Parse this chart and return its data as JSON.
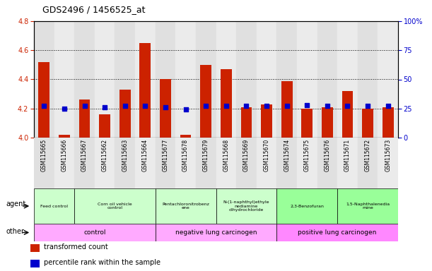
{
  "title": "GDS2496 / 1456525_at",
  "samples": [
    "GSM115665",
    "GSM115666",
    "GSM115667",
    "GSM115662",
    "GSM115663",
    "GSM115664",
    "GSM115677",
    "GSM115678",
    "GSM115679",
    "GSM115668",
    "GSM115669",
    "GSM115670",
    "GSM115674",
    "GSM115675",
    "GSM115676",
    "GSM115671",
    "GSM115672",
    "GSM115673"
  ],
  "bar_values": [
    4.52,
    4.02,
    4.26,
    4.16,
    4.33,
    4.65,
    4.4,
    4.02,
    4.5,
    4.47,
    4.21,
    4.23,
    4.39,
    4.2,
    4.21,
    4.32,
    4.2,
    4.21
  ],
  "percentile_values": [
    27,
    25,
    27,
    26,
    27,
    27,
    26,
    24,
    27,
    27,
    27,
    27,
    27,
    28,
    27,
    27,
    27,
    27
  ],
  "bar_color": "#cc2200",
  "dot_color": "#0000cc",
  "ylim_left": [
    4.0,
    4.8
  ],
  "ylim_right": [
    0,
    100
  ],
  "yticks_left": [
    4.0,
    4.2,
    4.4,
    4.6,
    4.8
  ],
  "yticks_right": [
    0,
    25,
    50,
    75,
    100
  ],
  "ytick_labels_right": [
    "0",
    "25",
    "50",
    "75",
    "100%"
  ],
  "grid_values": [
    4.2,
    4.4,
    4.6
  ],
  "col_colors": [
    "#e0e0e0",
    "#ebebeb"
  ],
  "agent_groups": [
    {
      "label": "Feed control",
      "start": 0,
      "end": 2,
      "color": "#ccffcc"
    },
    {
      "label": "Corn oil vehicle\ncontrol",
      "start": 2,
      "end": 6,
      "color": "#ccffcc"
    },
    {
      "label": "Pentachloronitrobenz\nene",
      "start": 6,
      "end": 9,
      "color": "#ccffcc"
    },
    {
      "label": "N-(1-naphthyl)ethyle\nnediamine\ndihydrochloride",
      "start": 9,
      "end": 12,
      "color": "#ccffcc"
    },
    {
      "label": "2,3-Benzofuran",
      "start": 12,
      "end": 15,
      "color": "#99ff99"
    },
    {
      "label": "1,5-Naphthalenedia\nmine",
      "start": 15,
      "end": 18,
      "color": "#99ff99"
    }
  ],
  "other_groups": [
    {
      "label": "control",
      "start": 0,
      "end": 6,
      "color": "#ffaaff"
    },
    {
      "label": "negative lung carcinogen",
      "start": 6,
      "end": 12,
      "color": "#ffaaff"
    },
    {
      "label": "positive lung carcinogen",
      "start": 12,
      "end": 18,
      "color": "#ff88ff"
    }
  ],
  "legend_items": [
    {
      "color": "#cc2200",
      "label": "transformed count"
    },
    {
      "color": "#0000cc",
      "label": "percentile rank within the sample"
    }
  ],
  "left_color": "#cc2200",
  "right_color": "#0000cc"
}
